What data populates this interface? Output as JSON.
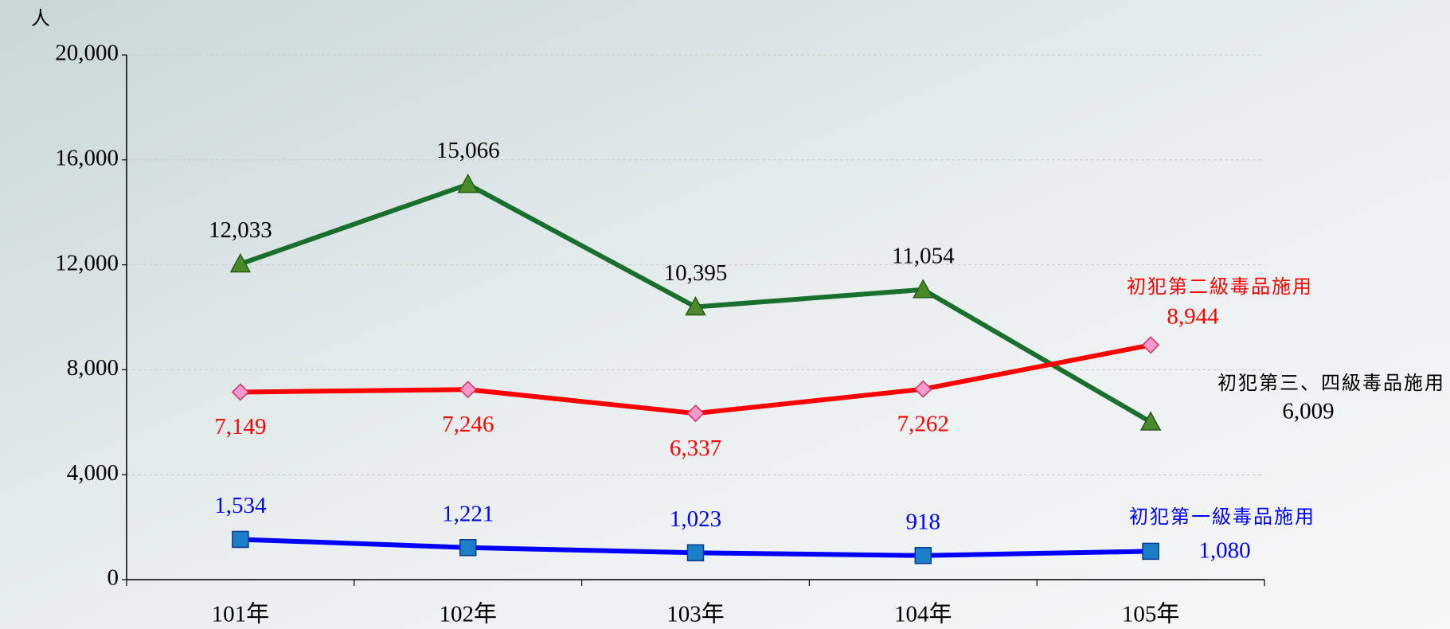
{
  "chart_data": {
    "type": "line",
    "y_axis_label": "人",
    "categories": [
      "101年",
      "102年",
      "103年",
      "104年",
      "105年"
    ],
    "ylim": [
      0,
      20000
    ],
    "yticks": [
      0,
      {
        "value": 4000,
        "label": "4,000"
      },
      {
        "value": 8000,
        "label": "8,000"
      },
      {
        "value": 12000,
        "label": "12,000"
      },
      {
        "value": 16000,
        "label": "16,000"
      },
      {
        "value": 20000,
        "label": "20,000"
      }
    ],
    "grid": true,
    "series": [
      {
        "name": "初犯第三、四級毒品施用",
        "color": "#1a6e2e",
        "marker": "triangle",
        "marker_color": "#4a8a2a",
        "values": [
          12033,
          15066,
          10395,
          11054,
          6009
        ],
        "value_labels": [
          "12,033",
          "15,066",
          "10,395",
          "11,054",
          "6,009"
        ],
        "label_color": "#000000"
      },
      {
        "name": "初犯第二級毒品施用",
        "color": "#ff0000",
        "marker": "diamond",
        "marker_color": "#ff99cc",
        "values": [
          7149,
          7246,
          6337,
          7262,
          8944
        ],
        "value_labels": [
          "7,149",
          "7,246",
          "6,337",
          "7,262",
          "8,944"
        ],
        "label_color": "#ff0000"
      },
      {
        "name": "初犯第一級毒品施用",
        "color": "#0000ff",
        "marker": "square",
        "marker_color": "#1a7fc8",
        "values": [
          1534,
          1221,
          1023,
          918,
          1080
        ],
        "value_labels": [
          "1,534",
          "1,221",
          "1,023",
          "918",
          "1,080"
        ],
        "label_color": "#0000ff"
      }
    ]
  }
}
